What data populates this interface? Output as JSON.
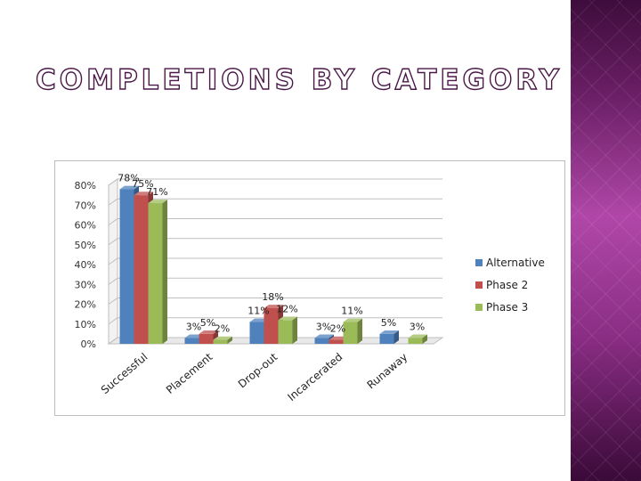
{
  "slide": {
    "title": "COMPLETIONS BY CATEGORY"
  },
  "colors": {
    "sidebar": "#6e1f69",
    "title_outline": "#4a1747"
  },
  "chart_data": {
    "type": "bar",
    "style": "3d-clustered-column",
    "categories": [
      "Successful",
      "Placement",
      "Drop-out",
      "Incarcerated",
      "Runaway"
    ],
    "series": [
      {
        "name": "Alternative",
        "color": "#4f81bd",
        "values": [
          78,
          3,
          11,
          3,
          5
        ],
        "labels": [
          "78%",
          "3%",
          "11%",
          "3%",
          "5%"
        ]
      },
      {
        "name": "Phase 2",
        "color": "#c0504d",
        "values": [
          75,
          5,
          18,
          2,
          0
        ],
        "labels": [
          "75%",
          "5%",
          "18%",
          "2%",
          ""
        ]
      },
      {
        "name": "Phase 3",
        "color": "#9bbb59",
        "values": [
          71,
          2,
          12,
          11,
          3
        ],
        "labels": [
          "71%",
          "2%",
          "12%",
          "11%",
          "3%"
        ]
      }
    ],
    "y_ticks": [
      "0%",
      "10%",
      "20%",
      "30%",
      "40%",
      "50%",
      "60%",
      "70%",
      "80%"
    ],
    "ylim": [
      0,
      80
    ],
    "grid": true,
    "legend_position": "right"
  }
}
